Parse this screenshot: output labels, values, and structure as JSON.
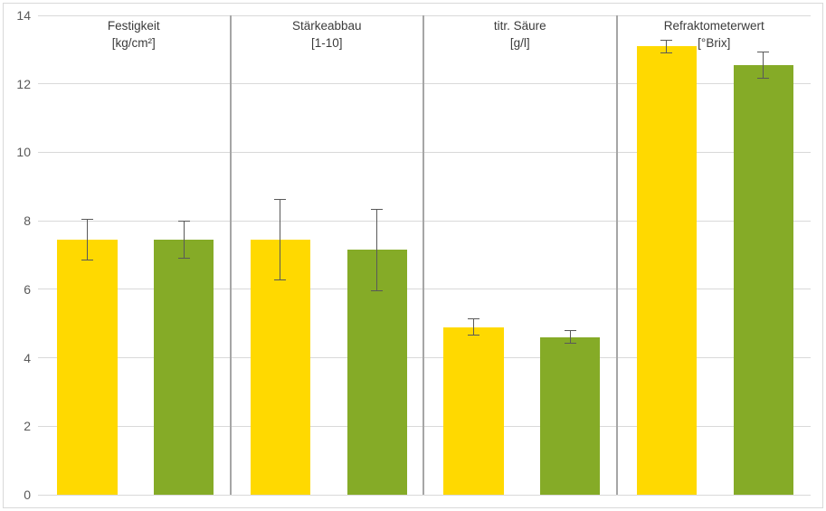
{
  "chart_data": {
    "type": "bar",
    "title": "",
    "ylim": [
      0,
      14
    ],
    "yticks": [
      0,
      2,
      4,
      6,
      8,
      10,
      12,
      14
    ],
    "grid": true,
    "legend_position": "none",
    "groups": [
      {
        "title": "Festigkeit",
        "subtitle": "[kg/cm²]",
        "bars": [
          {
            "color": "#FFD900",
            "value": 7.45,
            "error": 0.6
          },
          {
            "color": "#85AB27",
            "value": 7.45,
            "error": 0.55
          }
        ]
      },
      {
        "title": "Stärkeabbau",
        "subtitle": "[1-10]",
        "bars": [
          {
            "color": "#FFD900",
            "value": 7.45,
            "error": 1.2
          },
          {
            "color": "#85AB27",
            "value": 7.15,
            "error": 1.2
          }
        ]
      },
      {
        "title": "titr. Säure",
        "subtitle": "[g/l]",
        "bars": [
          {
            "color": "#FFD900",
            "value": 4.9,
            "error": 0.25
          },
          {
            "color": "#85AB27",
            "value": 4.6,
            "error": 0.2
          }
        ]
      },
      {
        "title": "Refraktometerwert",
        "subtitle": "[°Brix]",
        "bars": [
          {
            "color": "#FFD900",
            "value": 13.1,
            "error": 0.2
          },
          {
            "color": "#85AB27",
            "value": 12.55,
            "error": 0.4
          }
        ]
      }
    ],
    "colors": {
      "bar_yellow": "#FFD900",
      "bar_green": "#85AB27",
      "gridline": "#D9D9D9",
      "panel_divider": "#A6A6A6",
      "error_bar": "#595959",
      "tick_label": "#595959",
      "group_title": "#3B3B3B",
      "chart_border": "#D9D9D9",
      "background": "#FFFFFF"
    }
  }
}
